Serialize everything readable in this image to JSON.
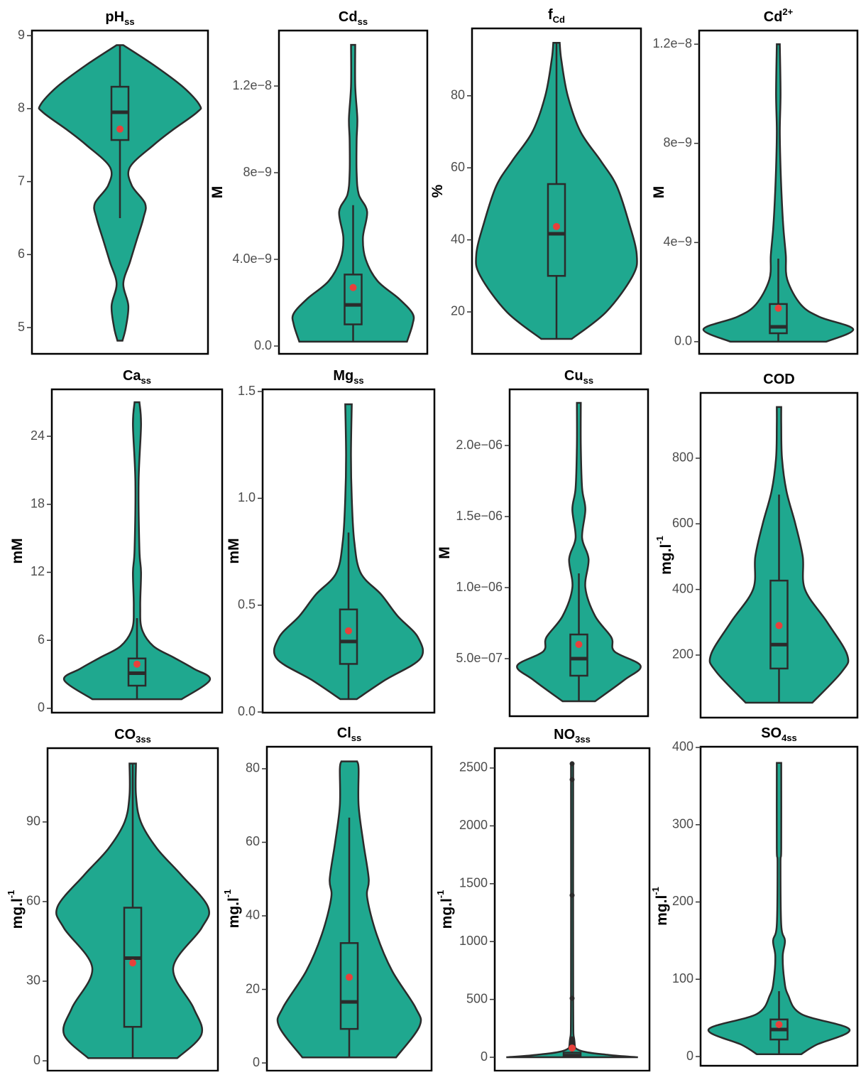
{
  "chart_data": [
    {
      "type": "violin",
      "title": "pH",
      "title_sub": "ss",
      "ylim": [
        4.64,
        9.07
      ],
      "yticks": [
        5,
        6,
        7,
        8,
        9
      ],
      "color": "#1fa88f",
      "violin": {
        "y": [
          4.82,
          5.0,
          5.3,
          5.6,
          5.9,
          6.2,
          6.5,
          6.7,
          6.95,
          7.2,
          7.5,
          7.7,
          7.95,
          8.05,
          8.3,
          8.6,
          8.87
        ],
        "w": [
          0.03,
          0.07,
          0.1,
          0.04,
          0.12,
          0.2,
          0.28,
          0.3,
          0.14,
          0.12,
          0.4,
          0.62,
          0.92,
          0.95,
          0.75,
          0.4,
          0.04
        ]
      },
      "box": {
        "min": 6.5,
        "q1": 7.57,
        "median": 7.95,
        "q3": 8.3,
        "max": 8.87
      },
      "mean": 7.72
    },
    {
      "type": "violin",
      "title": "Cd",
      "title_sub": "ss",
      "ylabel": "M",
      "ylim": [
        -3.6e-10,
        1.456e-08
      ],
      "yticks": [
        {
          "value": 0,
          "label": "0.0"
        },
        {
          "value": 4e-09,
          "label": "4.0e−9"
        },
        {
          "value": 8e-09,
          "label": "8e−9"
        },
        {
          "value": 1.2e-08,
          "label": "1.2e−8"
        }
      ],
      "color": "#1fa88f",
      "violin": {
        "y": [
          2e-10,
          1e-09,
          1.5e-09,
          2.2e-09,
          3e-09,
          4e-09,
          5e-09,
          6.2e-09,
          7e-09,
          8e-09,
          9.5e-09,
          1.05e-08,
          1.2e-08,
          1.39e-08
        ],
        "w": [
          0.77,
          0.85,
          0.85,
          0.65,
          0.35,
          0.18,
          0.14,
          0.2,
          0.08,
          0.05,
          0.05,
          0.06,
          0.03,
          0.03
        ]
      },
      "box": {
        "min": 2e-10,
        "q1": 1e-09,
        "median": 1.9e-09,
        "q3": 3.3e-09,
        "max": 6.5e-09
      },
      "mean": 2.7e-09
    },
    {
      "type": "violin",
      "title": "f",
      "title_sub": "Cd",
      "ylabel": "%",
      "ylim": [
        8.36,
        98.7
      ],
      "yticks": [
        20,
        40,
        60,
        80
      ],
      "color": "#1fa88f",
      "violin": {
        "y": [
          12.5,
          20,
          30,
          36,
          45,
          55,
          62,
          70,
          80,
          90,
          94.7
        ],
        "w": [
          0.19,
          0.62,
          0.95,
          1.0,
          0.9,
          0.75,
          0.55,
          0.3,
          0.14,
          0.06,
          0.04
        ]
      },
      "box": {
        "min": 12.5,
        "q1": 30,
        "median": 41.7,
        "q3": 55.5,
        "max": 94.7
      },
      "mean": 43.7
    },
    {
      "type": "violin",
      "title": "Cd",
      "title_sup": "2+",
      "ylabel": "M",
      "ylim": [
        -4.9e-10,
        1.255e-08
      ],
      "yticks": [
        {
          "value": 0,
          "label": "0.0"
        },
        {
          "value": 4e-09,
          "label": "4e−9"
        },
        {
          "value": 8e-09,
          "label": "8e−9"
        },
        {
          "value": 1.2e-08,
          "label": "1.2e−8"
        }
      ],
      "color": "#1fa88f",
      "violin": {
        "y": [
          0,
          5e-10,
          1e-09,
          1.5e-09,
          2.5e-09,
          3.5e-09,
          4.5e-09,
          5.5e-09,
          7e-09,
          8.5e-09,
          1e-08,
          1.2e-08
        ],
        "w": [
          0.64,
          1.0,
          0.55,
          0.3,
          0.12,
          0.1,
          0.07,
          0.05,
          0.03,
          0.02,
          0.03,
          0.02
        ]
      },
      "box": {
        "min": 0,
        "q1": 3.4e-10,
        "median": 6e-10,
        "q3": 1.52e-09,
        "max": 3.35e-09
      },
      "mean": 1.35e-09
    },
    {
      "type": "violin",
      "title": "Ca",
      "title_sub": "ss",
      "ylabel": "mM",
      "ylim": [
        -0.38,
        28.14
      ],
      "yticks": [
        0,
        6,
        12,
        18,
        24
      ],
      "color": "#1fa88f",
      "violin": {
        "y": [
          0.8,
          2.5,
          3.5,
          4.5,
          5.5,
          7,
          9,
          12,
          14,
          20,
          25,
          27
        ],
        "w": [
          0.55,
          0.9,
          0.7,
          0.45,
          0.2,
          0.06,
          0.04,
          0.05,
          0.03,
          0.02,
          0.05,
          0.03
        ]
      },
      "box": {
        "min": 0.8,
        "q1": 2,
        "median": 3.1,
        "q3": 4.4,
        "max": 7.96
      },
      "mean": 3.9
    },
    {
      "type": "violin",
      "title": "Mg",
      "title_sub": "ss",
      "ylabel": "mM",
      "ylim": [
        -0.003,
        1.51
      ],
      "yticks": [
        {
          "value": 0,
          "label": "0.0"
        },
        0.5,
        {
          "value": 1,
          "label": "1.0"
        },
        1.5
      ],
      "color": "#1fa88f",
      "violin": {
        "y": [
          0.06,
          0.15,
          0.25,
          0.35,
          0.45,
          0.55,
          0.65,
          0.8,
          1.0,
          1.2,
          1.44
        ],
        "w": [
          0.1,
          0.45,
          0.88,
          0.85,
          0.6,
          0.4,
          0.15,
          0.07,
          0.04,
          0.03,
          0.04
        ]
      },
      "box": {
        "min": 0.06,
        "q1": 0.225,
        "median": 0.33,
        "q3": 0.48,
        "max": 0.84
      },
      "mean": 0.38
    },
    {
      "type": "violin",
      "title": "Cu",
      "title_sub": "ss",
      "ylabel": "M",
      "ylim": [
        9.5e-08,
        2.395e-06
      ],
      "yticks": [
        {
          "value": 5e-07,
          "label": "5.0e−07"
        },
        {
          "value": 1e-06,
          "label": "1.0e−06"
        },
        {
          "value": 1.5e-06,
          "label": "1.5e−06"
        },
        {
          "value": 2e-06,
          "label": "2.0e−06"
        }
      ],
      "color": "#1fa88f",
      "violin": {
        "y": [
          2e-07,
          3.5e-07,
          4.5e-07,
          5.5e-07,
          6.5e-07,
          8e-07,
          1e-06,
          1.2e-06,
          1.35e-06,
          1.55e-06,
          1.7e-06,
          2e-06,
          2.3e-06
        ],
        "w": [
          0.25,
          0.7,
          0.95,
          0.55,
          0.5,
          0.25,
          0.1,
          0.15,
          0.05,
          0.1,
          0.05,
          0.03,
          0.03
        ]
      },
      "box": {
        "min": 2e-07,
        "q1": 3.8e-07,
        "median": 5e-07,
        "q3": 6.7e-07,
        "max": 1.1e-06
      },
      "mean": 6e-07
    },
    {
      "type": "violin",
      "title": "COD",
      "ylabel": "mg.l",
      "ylabel_sup": "-1",
      "ylim": [
        9.4,
        999
      ],
      "yticks": [
        200,
        400,
        600,
        800
      ],
      "color": "#1fa88f",
      "violin": {
        "y": [
          55,
          150,
          200,
          300,
          400,
          500,
          600,
          700,
          800,
          900,
          956
        ],
        "w": [
          0.45,
          0.85,
          0.92,
          0.65,
          0.35,
          0.32,
          0.22,
          0.1,
          0.04,
          0.03,
          0.03
        ]
      },
      "box": {
        "min": 55,
        "q1": 159,
        "median": 232,
        "q3": 427,
        "max": 689
      },
      "mean": 290
    },
    {
      "type": "violin",
      "title": "CO",
      "title_sub": "3ss",
      "ylabel": "mg.l",
      "ylabel_sup": "-1",
      "ylim": [
        -3.74,
        117.8
      ],
      "yticks": [
        0,
        30,
        60,
        90
      ],
      "color": "#1fa88f",
      "violin": {
        "y": [
          1,
          10,
          20,
          35,
          50,
          58,
          70,
          80,
          90,
          100,
          112
        ],
        "w": [
          0.55,
          0.85,
          0.75,
          0.5,
          0.85,
          0.93,
          0.6,
          0.3,
          0.1,
          0.04,
          0.04
        ]
      },
      "box": {
        "min": 1,
        "q1": 12.8,
        "median": 38.7,
        "q3": 57.7,
        "max": 112
      },
      "mean": 36.9
    },
    {
      "type": "violin",
      "title": "Cl",
      "title_sub": "ss",
      "ylabel": "mg.l",
      "ylabel_sup": "-1",
      "ylim": [
        -2.12,
        85.98
      ],
      "yticks": [
        0,
        20,
        40,
        60,
        80
      ],
      "color": "#1fa88f",
      "violin": {
        "y": [
          1.5,
          10,
          15,
          25,
          35,
          45,
          50,
          60,
          70,
          80,
          82
        ],
        "w": [
          0.6,
          0.9,
          0.85,
          0.55,
          0.35,
          0.23,
          0.25,
          0.18,
          0.12,
          0.12,
          0.1
        ]
      },
      "box": {
        "min": 1.5,
        "q1": 9.25,
        "median": 16.6,
        "q3": 32.6,
        "max": 66.7
      },
      "mean": 23.3
    },
    {
      "type": "violin",
      "title": "NO",
      "title_sub": "3ss",
      "ylabel": "mg.l",
      "ylabel_sup": "-1",
      "ylim": [
        -116.4,
        2671.6
      ],
      "yticks": [
        0,
        500,
        1000,
        1500,
        2000,
        2500
      ],
      "color": "#1fa88f",
      "violin": {
        "y": [
          0,
          20,
          60,
          150,
          500,
          2537
        ],
        "w": [
          0.9,
          0.5,
          0.1,
          0.03,
          0.015,
          0.015
        ]
      },
      "box": {
        "min": 0,
        "q1": 5,
        "median": 15,
        "q3": 40,
        "max": 100
      },
      "mean": 79.7,
      "outliers": [
        2537,
        2400,
        1400,
        510,
        160,
        140,
        120
      ]
    },
    {
      "type": "violin",
      "title": "SO",
      "title_sub": "4ss",
      "ylabel": "mg.l",
      "ylabel_sup": "-1",
      "ylim": [
        -11.95,
        400.9
      ],
      "yticks": [
        0,
        100,
        200,
        300,
        400
      ],
      "color": "#1fa88f",
      "violin": {
        "y": [
          3,
          15,
          35,
          55,
          80,
          100,
          130,
          150,
          170,
          250,
          270,
          380
        ],
        "w": [
          0.3,
          0.5,
          0.95,
          0.3,
          0.12,
          0.07,
          0.05,
          0.08,
          0.03,
          0.02,
          0.03,
          0.03
        ]
      },
      "box": {
        "min": 3.7,
        "q1": 22,
        "median": 35,
        "q3": 48,
        "max": 84.6
      },
      "mean": 41.4
    }
  ]
}
